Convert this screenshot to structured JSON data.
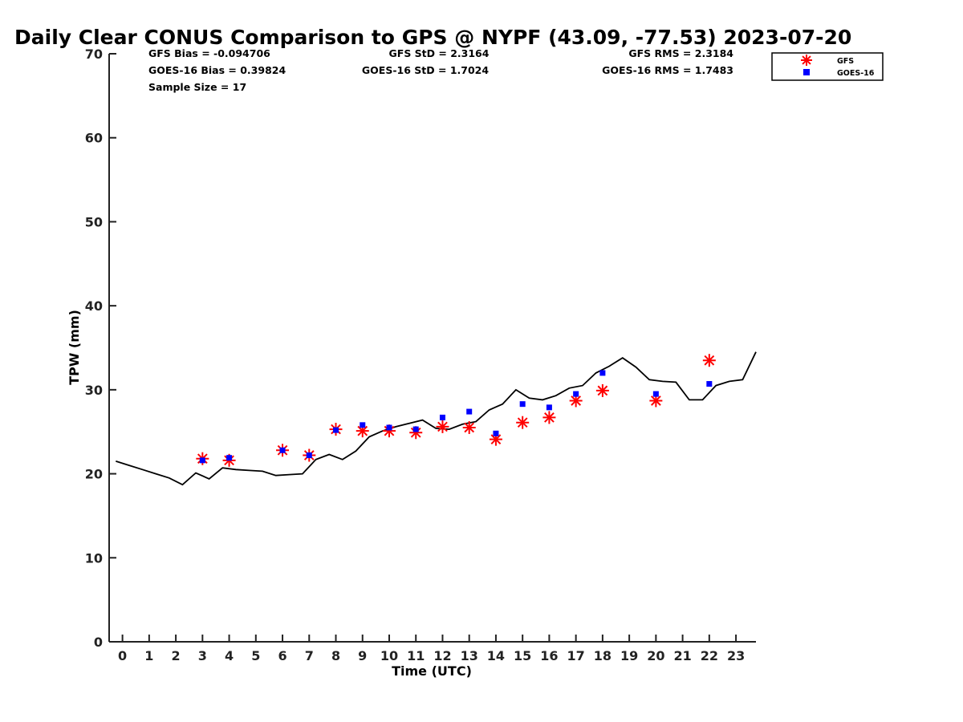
{
  "chart_data": {
    "type": "scatter",
    "title": "Daily Clear CONUS Comparison to GPS @ NYPF (43.09, -77.53) 2023-07-20",
    "xlabel": "Time (UTC)",
    "ylabel": "TPW (mm)",
    "xlim": [
      -0.5,
      23.75
    ],
    "ylim": [
      0,
      70
    ],
    "x_ticks": [
      0,
      1,
      2,
      3,
      4,
      5,
      6,
      7,
      8,
      9,
      10,
      11,
      12,
      13,
      14,
      15,
      16,
      17,
      18,
      19,
      20,
      21,
      22,
      23
    ],
    "y_ticks": [
      0,
      10,
      20,
      30,
      40,
      50,
      60,
      70
    ],
    "grid": false,
    "legend_position": "top-right",
    "stats": {
      "gfs_bias": "GFS Bias = -0.094706",
      "goes_bias": "GOES-16 Bias = 0.39824",
      "sample_size": "Sample Size = 17",
      "gfs_std": "GFS StD = 2.3164",
      "goes_std": "GOES-16 StD = 1.7024",
      "gfs_rms": "GFS RMS = 2.3184",
      "goes_rms": "GOES-16 RMS = 1.7483"
    },
    "series": [
      {
        "name": "GFS",
        "marker": "asterisk",
        "color": "#ff0000",
        "points": [
          [
            3,
            21.8
          ],
          [
            4,
            21.6
          ],
          [
            6,
            22.8
          ],
          [
            7,
            22.2
          ],
          [
            8,
            25.3
          ],
          [
            9,
            25.1
          ],
          [
            10,
            25.1
          ],
          [
            11,
            24.9
          ],
          [
            12,
            25.6
          ],
          [
            13,
            25.5
          ],
          [
            14,
            24.1
          ],
          [
            15,
            26.1
          ],
          [
            16,
            26.7
          ],
          [
            17,
            28.7
          ],
          [
            18,
            29.9
          ],
          [
            20,
            28.7
          ],
          [
            22,
            33.5
          ]
        ]
      },
      {
        "name": "GOES-16",
        "marker": "square",
        "color": "#0000ff",
        "points": [
          [
            3,
            21.6
          ],
          [
            4,
            21.9
          ],
          [
            6,
            22.8
          ],
          [
            7,
            22.2
          ],
          [
            8,
            25.2
          ],
          [
            9,
            25.8
          ],
          [
            10,
            25.5
          ],
          [
            11,
            25.3
          ],
          [
            12,
            26.7
          ],
          [
            13,
            27.4
          ],
          [
            14,
            24.8
          ],
          [
            15,
            28.3
          ],
          [
            16,
            27.9
          ],
          [
            17,
            29.5
          ],
          [
            18,
            32.0
          ],
          [
            20,
            29.5
          ],
          [
            22,
            30.7
          ]
        ]
      },
      {
        "name": "GPS",
        "marker": "line",
        "color": "#000000",
        "points": [
          [
            -0.25,
            21.5
          ],
          [
            0.25,
            21.0
          ],
          [
            0.75,
            20.5
          ],
          [
            1.25,
            20.0
          ],
          [
            1.75,
            19.5
          ],
          [
            2.25,
            18.7
          ],
          [
            2.75,
            20.1
          ],
          [
            3.25,
            19.4
          ],
          [
            3.75,
            20.7
          ],
          [
            4.25,
            20.5
          ],
          [
            4.75,
            20.4
          ],
          [
            5.25,
            20.3
          ],
          [
            5.75,
            19.8
          ],
          [
            6.25,
            19.9
          ],
          [
            6.75,
            20.0
          ],
          [
            7.25,
            21.7
          ],
          [
            7.75,
            22.3
          ],
          [
            8.25,
            21.7
          ],
          [
            8.75,
            22.7
          ],
          [
            9.25,
            24.4
          ],
          [
            9.75,
            25.1
          ],
          [
            10.25,
            25.6
          ],
          [
            10.75,
            26.0
          ],
          [
            11.25,
            26.4
          ],
          [
            11.75,
            25.4
          ],
          [
            12.25,
            25.3
          ],
          [
            12.75,
            25.9
          ],
          [
            13.25,
            26.2
          ],
          [
            13.75,
            27.6
          ],
          [
            14.25,
            28.3
          ],
          [
            14.75,
            30.0
          ],
          [
            15.25,
            29.0
          ],
          [
            15.75,
            28.8
          ],
          [
            16.25,
            29.3
          ],
          [
            16.75,
            30.2
          ],
          [
            17.25,
            30.5
          ],
          [
            17.75,
            32.0
          ],
          [
            18.25,
            32.8
          ],
          [
            18.75,
            33.8
          ],
          [
            19.25,
            32.7
          ],
          [
            19.75,
            31.2
          ],
          [
            20.25,
            31.0
          ],
          [
            20.75,
            30.9
          ],
          [
            21.25,
            28.8
          ],
          [
            21.75,
            28.8
          ],
          [
            22.25,
            30.5
          ],
          [
            22.75,
            31.0
          ],
          [
            23.25,
            31.2
          ],
          [
            23.75,
            34.5
          ]
        ]
      }
    ]
  }
}
